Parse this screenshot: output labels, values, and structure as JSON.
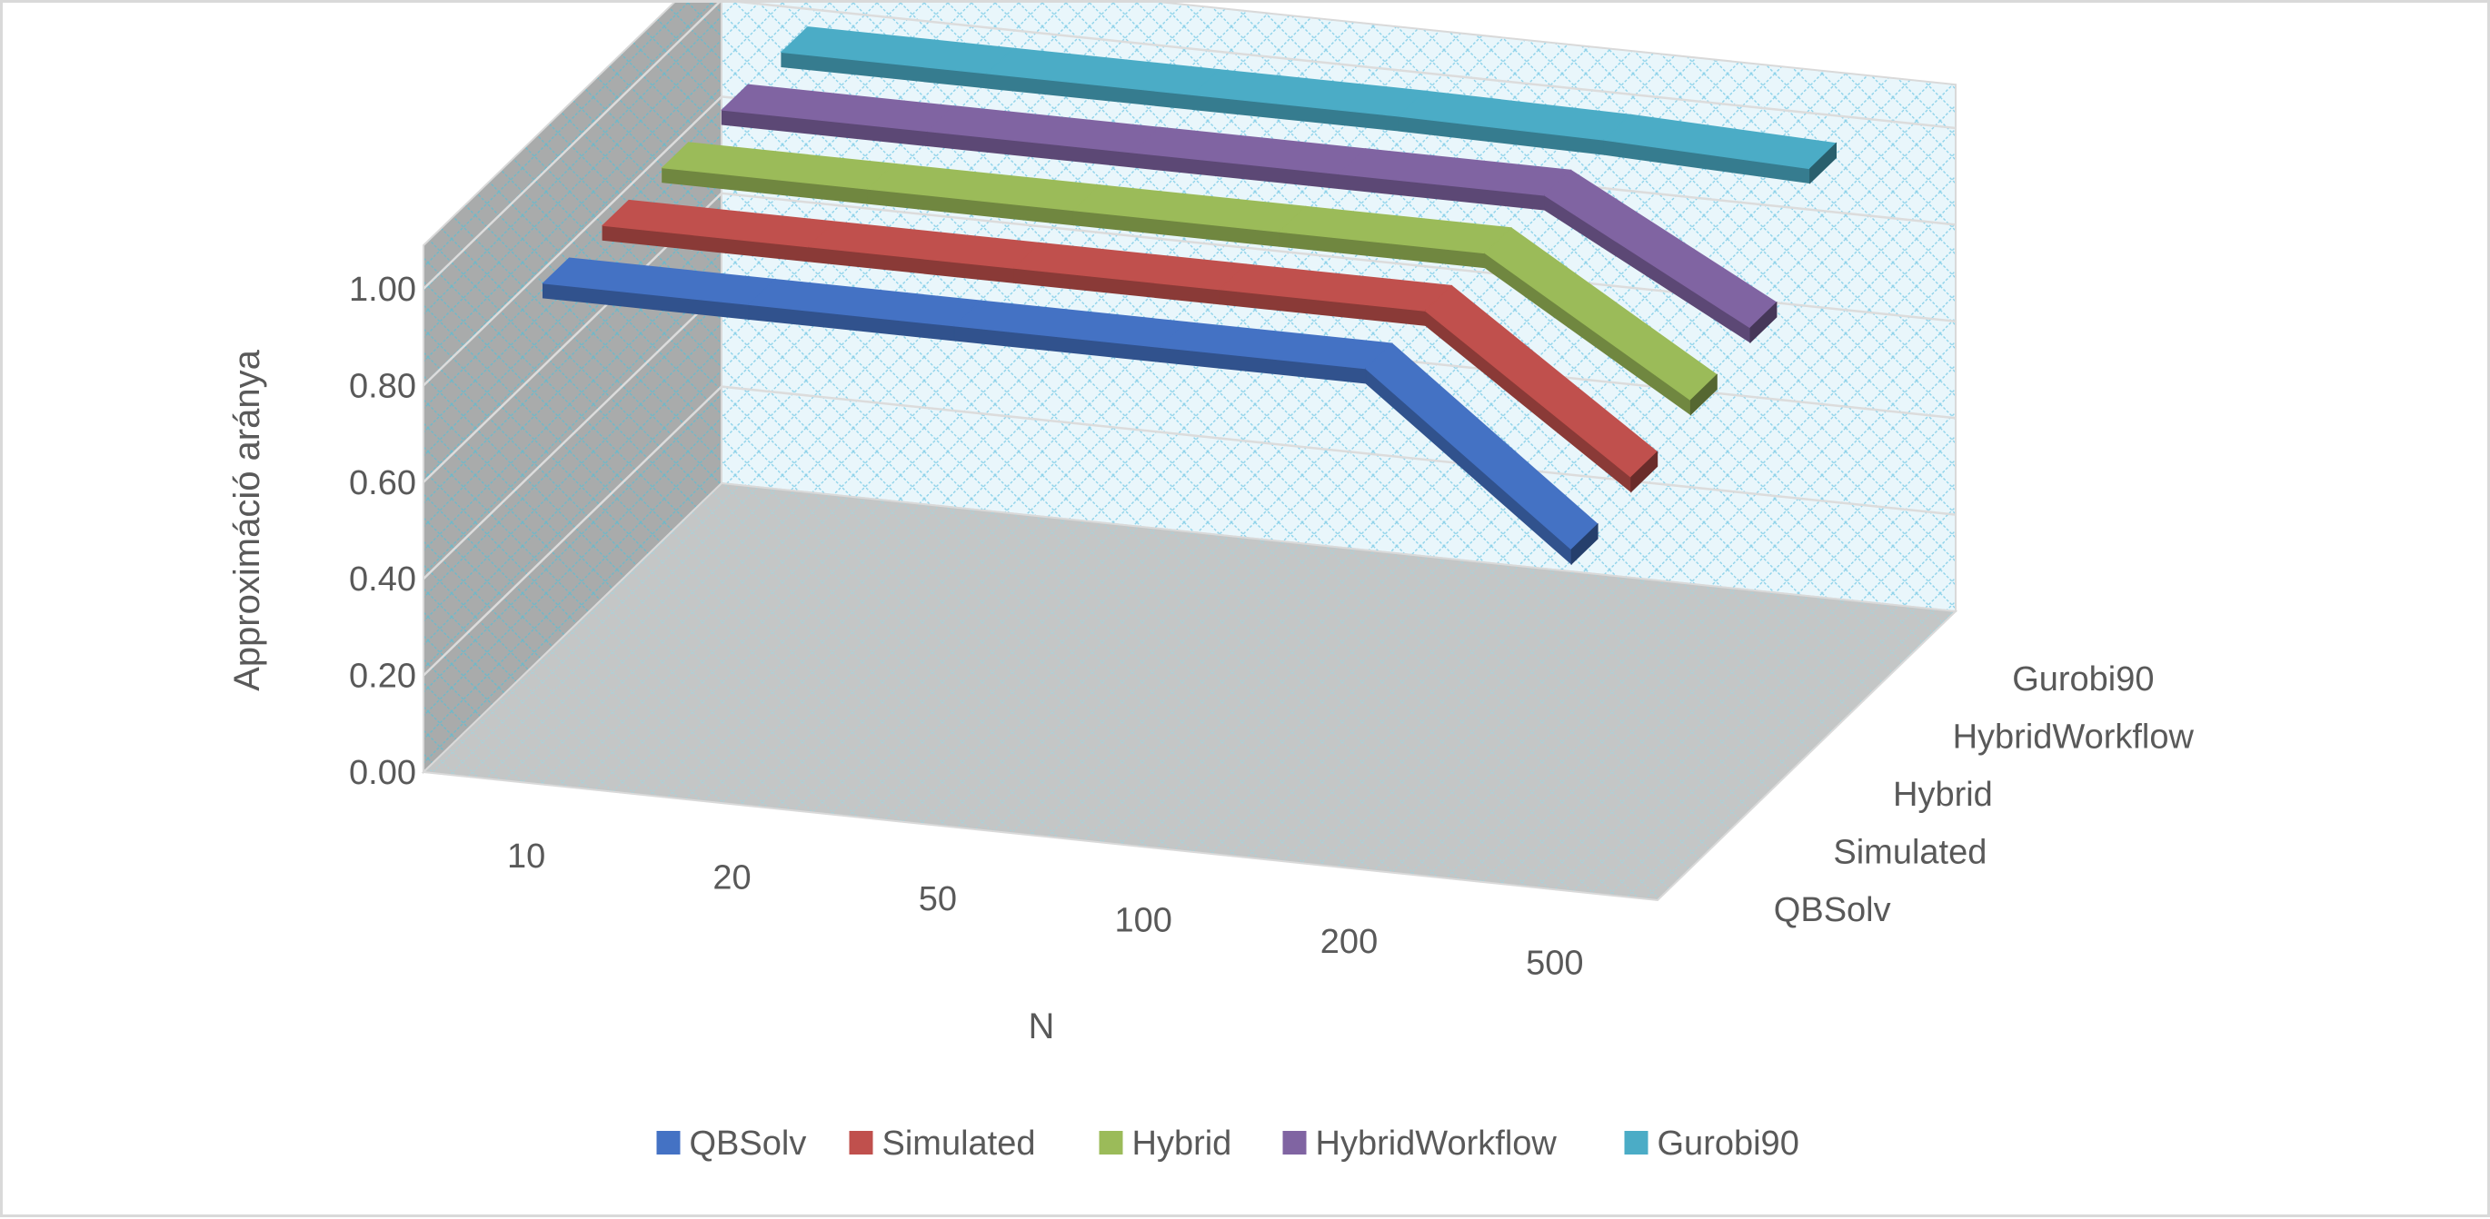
{
  "chart_data": {
    "type": "line",
    "subtype": "3d-line",
    "title": "",
    "xlabel": "N",
    "ylabel": "Approximáció aránya",
    "zlabel": "",
    "categories": [
      "10",
      "20",
      "50",
      "100",
      "200",
      "500"
    ],
    "ylim": [
      0,
      1
    ],
    "yticks": [
      "0.00",
      "0.20",
      "0.40",
      "0.60",
      "0.80",
      "1.00"
    ],
    "grid": true,
    "legend_position": "bottom",
    "series": [
      {
        "name": "QBSolv",
        "color": "#4472c4",
        "values": [
          1.0,
          1.0,
          1.0,
          1.0,
          1.0,
          0.67
        ]
      },
      {
        "name": "Simulated",
        "color": "#c0504d",
        "values": [
          1.0,
          1.0,
          1.0,
          1.0,
          1.0,
          0.7
        ]
      },
      {
        "name": "Hybrid",
        "color": "#9bbb59",
        "values": [
          1.0,
          1.0,
          1.0,
          1.0,
          1.0,
          0.74
        ]
      },
      {
        "name": "HybridWorkflow",
        "color": "#8064a2",
        "values": [
          1.0,
          1.0,
          1.0,
          1.0,
          1.0,
          0.77
        ]
      },
      {
        "name": "Gurobi90",
        "color": "#4bacc6",
        "values": [
          1.0,
          1.0,
          1.0,
          1.0,
          0.995,
          0.98
        ]
      }
    ]
  }
}
